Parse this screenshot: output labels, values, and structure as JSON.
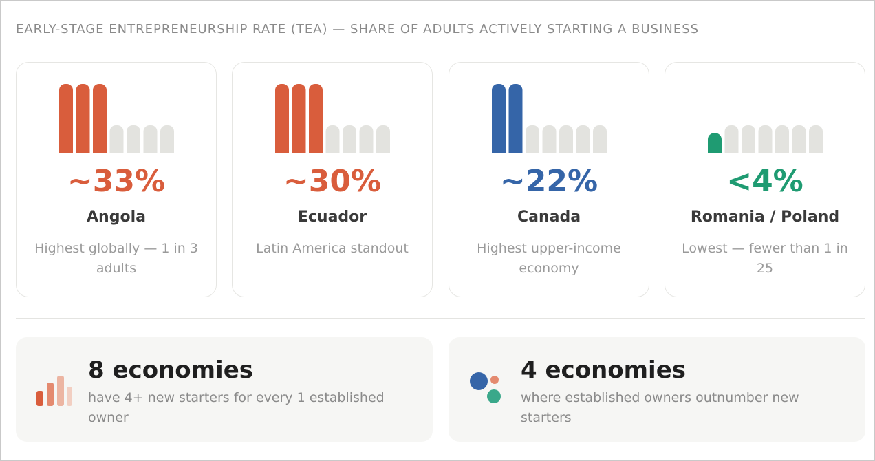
{
  "header": {
    "title": "EARLY-STAGE ENTREPRENEURSHIP RATE (TEA) — SHARE OF ADULTS ACTIVELY STARTING A BUSINESS"
  },
  "chart_data": {
    "type": "bar",
    "title": "EARLY-STAGE ENTREPRENEURSHIP RATE (TEA) — SHARE OF ADULTS ACTIVELY STARTING A BUSINESS",
    "cards": [
      {
        "value_label": "~33%",
        "value": 33,
        "filled_segments": 3,
        "country": "Angola",
        "note": "Highest globally — 1 in 3 adults",
        "color": "#d95d3c"
      },
      {
        "value_label": "~30%",
        "value": 30,
        "filled_segments": 3,
        "country": "Ecuador",
        "note": "Latin America standout",
        "color": "#d95d3c"
      },
      {
        "value_label": "~22%",
        "value": 22,
        "filled_segments": 2,
        "country": "Canada",
        "note": "Highest upper-income economy",
        "color": "#3565a8"
      },
      {
        "value_label": "<4%",
        "value": 4,
        "filled_segments": 0.5,
        "country": "Romania / Poland",
        "note": "Lowest — fewer than 1 in 25",
        "color": "#1f9b72"
      }
    ],
    "total_segments": 7,
    "empty_color": "#e3e3df"
  },
  "summary": [
    {
      "count": "8 economies",
      "text": "have 4+ new starters for every 1 established owner",
      "icon": "bar-chart-icon"
    },
    {
      "count": "4 economies",
      "text": "where established owners outnumber new starters",
      "icon": "dots-icon"
    }
  ]
}
